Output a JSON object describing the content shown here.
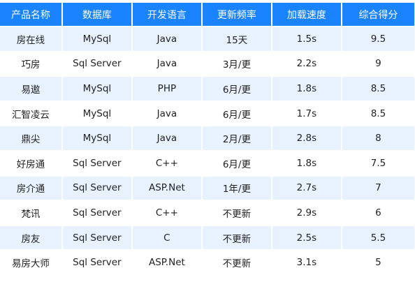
{
  "colors": {
    "header_bg": "#1a83ff",
    "header_text": "#ffffff",
    "row_odd_bg": "#e8f2ff",
    "row_even_bg": "#ffffff",
    "cell_text": "#222222"
  },
  "table": {
    "headers": [
      "产品名称",
      "数据库",
      "开发语言",
      "更新频率",
      "加载速度",
      "综合得分"
    ],
    "rows": [
      [
        "房在线",
        "MySql",
        "Java",
        "15天",
        "1.5s",
        "9.5"
      ],
      [
        "巧房",
        "Sql Server",
        "Java",
        "3月/更",
        "2.2s",
        "9"
      ],
      [
        "易遨",
        "MySql",
        "PHP",
        "6月/更",
        "1.8s",
        "8.5"
      ],
      [
        "汇智凌云",
        "MySql",
        "Java",
        "6月/更",
        "1.7s",
        "8.5"
      ],
      [
        "鼎尖",
        "MySql",
        "Java",
        "2月/更",
        "2.8s",
        "8"
      ],
      [
        "好房通",
        "Sql Server",
        "C++",
        "6月/更",
        "1.8s",
        "7.5"
      ],
      [
        "房介通",
        "Sql Server",
        "ASP.Net",
        "1年/更",
        "2.7s",
        "7"
      ],
      [
        "梵讯",
        "Sql Server",
        "C++",
        "不更新",
        "2.9s",
        "6"
      ],
      [
        "房友",
        "Sql Server",
        "C",
        "不更新",
        "2.5s",
        "5.5"
      ],
      [
        "易房大师",
        "Sql Server",
        "ASP.Net",
        "不更新",
        "3.1s",
        "5"
      ]
    ]
  }
}
